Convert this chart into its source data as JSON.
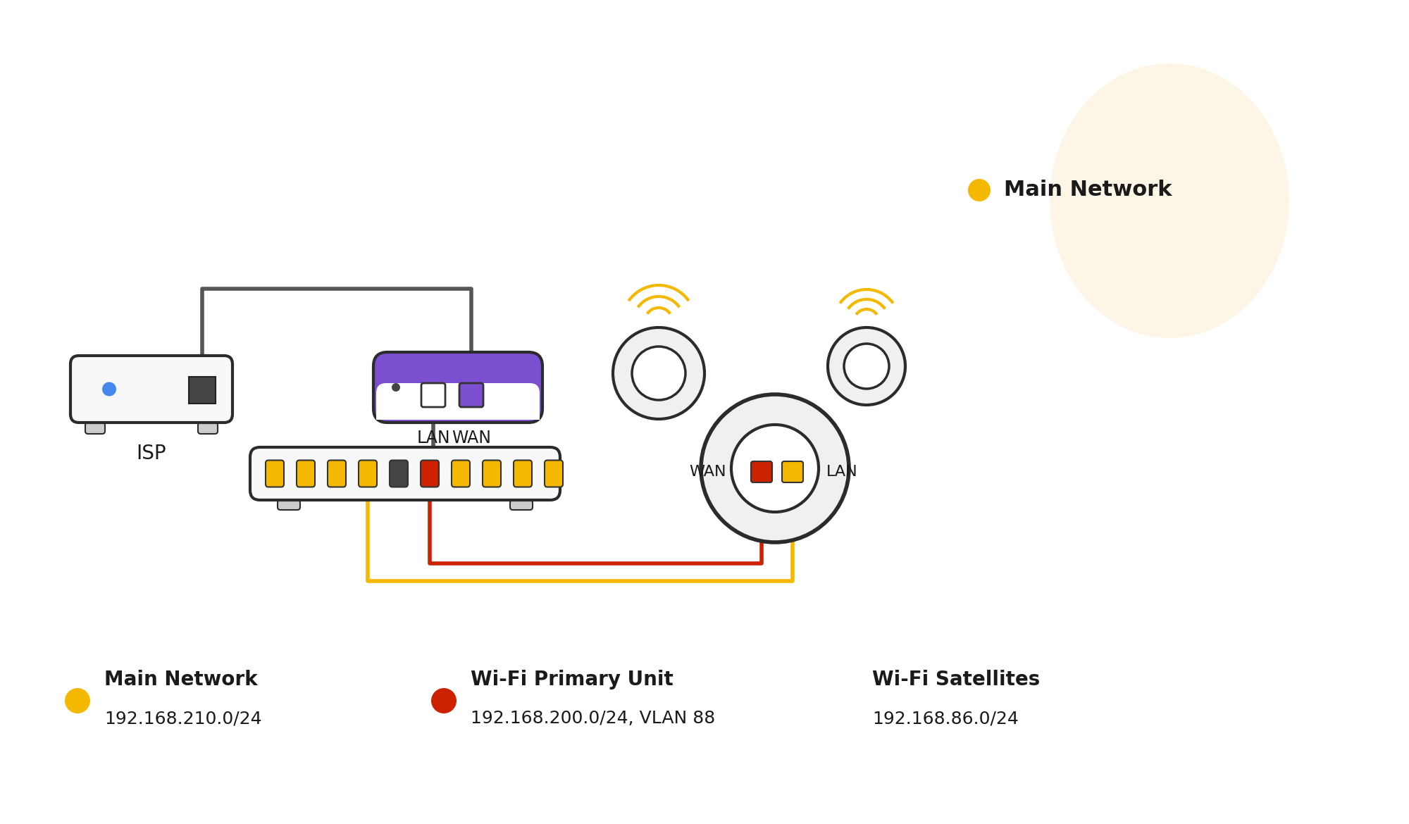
{
  "bg_color": "#ffffff",
  "main_network_bubble_color": "#fdf5e6",
  "main_network_dot_color": "#f5b800",
  "main_network_label": "Main Network",
  "main_network_ip": "192.168.210.0/24",
  "wifi_primary_label": "Wi-Fi Primary Unit",
  "wifi_primary_ip": "192.168.200.0/24, VLAN 88",
  "wifi_primary_dot_color": "#cc2200",
  "wifi_satellites_label": "Wi-Fi Satellites",
  "wifi_satellites_ip": "192.168.86.0/24",
  "isp_label": "ISP",
  "lan_label": "LAN",
  "wan_label": "WAN",
  "router_purple": "#7b4fcf",
  "router_outline": "#2b2b2b",
  "cable_color_gray": "#555555",
  "cable_color_yellow": "#f5b800",
  "cable_color_red": "#cc2200",
  "port_yellow": "#f5b800",
  "port_red": "#cc2200",
  "text_color": "#1a1a1a"
}
